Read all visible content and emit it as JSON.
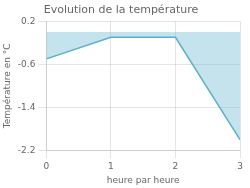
{
  "chart_data": {
    "type": "area",
    "title": "Evolution de la température",
    "xlabel": "heure par heure",
    "ylabel": "Température en °C",
    "x": [
      0,
      1,
      2,
      3
    ],
    "values": [
      -0.5,
      -0.1,
      -0.1,
      -2.0
    ],
    "color": "#5ab0cc",
    "xlim": [
      0,
      3
    ],
    "ylim": [
      -2.2,
      0.2
    ],
    "xticks": [
      0,
      1,
      2,
      3
    ],
    "yticks": [
      0.2,
      -0.6,
      -1.4,
      -2.2
    ],
    "grid": true
  }
}
